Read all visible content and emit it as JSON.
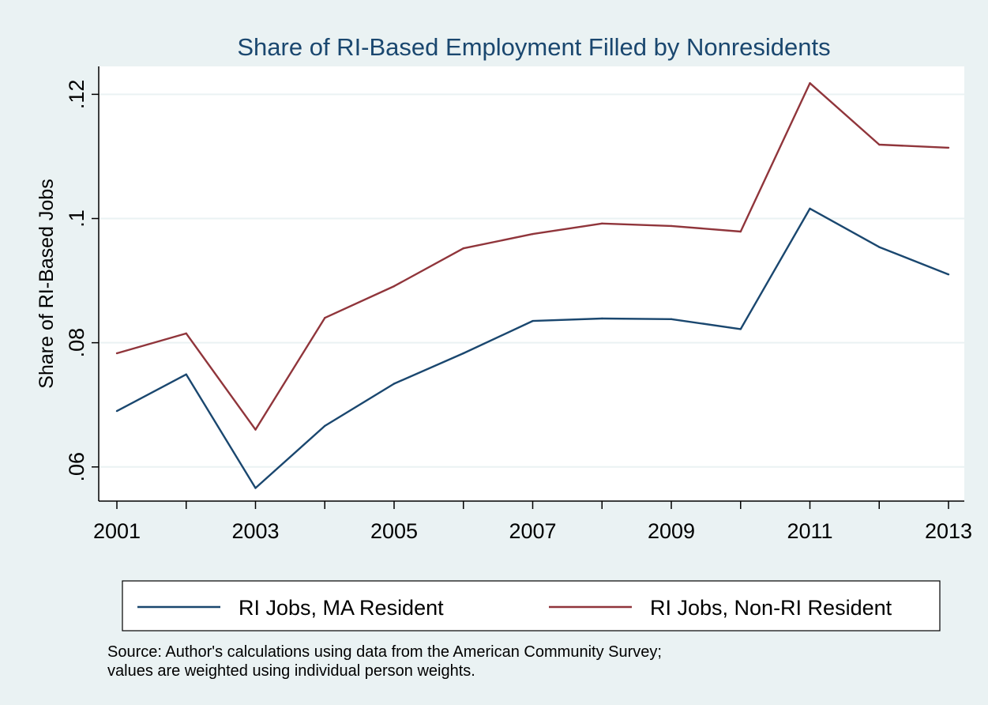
{
  "chart_data": {
    "type": "line",
    "title": "Share of RI-Based Employment Filled by Nonresidents",
    "xlabel": "",
    "ylabel": "Share of RI-Based Jobs",
    "x": [
      2001,
      2002,
      2003,
      2004,
      2005,
      2006,
      2007,
      2008,
      2009,
      2010,
      2011,
      2012,
      2013
    ],
    "x_ticks": [
      "2001",
      "2003",
      "2005",
      "2007",
      "2009",
      "2011",
      "2013"
    ],
    "y_ticks": [
      ".06",
      ".08",
      ".1",
      ".12"
    ],
    "xlim": [
      2001,
      2013
    ],
    "ylim": [
      0.0545,
      0.1245
    ],
    "grid": true,
    "legend_position": "bottom",
    "series": [
      {
        "name": "RI Jobs, MA Resident",
        "color": "#1a476f",
        "values": [
          0.069,
          0.0749,
          0.0566,
          0.0666,
          0.0734,
          0.0783,
          0.0835,
          0.0839,
          0.0838,
          0.0822,
          0.1016,
          0.0954,
          0.091
        ]
      },
      {
        "name": "RI Jobs, Non-RI Resident",
        "color": "#90353b",
        "values": [
          0.0783,
          0.0815,
          0.066,
          0.084,
          0.0891,
          0.0952,
          0.0975,
          0.0992,
          0.0988,
          0.0979,
          0.1218,
          0.1119,
          0.1114
        ]
      }
    ],
    "note_lines": [
      "Source: Author's calculations using data from the American Community Survey;",
      "values are weighted using individual person weights."
    ]
  }
}
